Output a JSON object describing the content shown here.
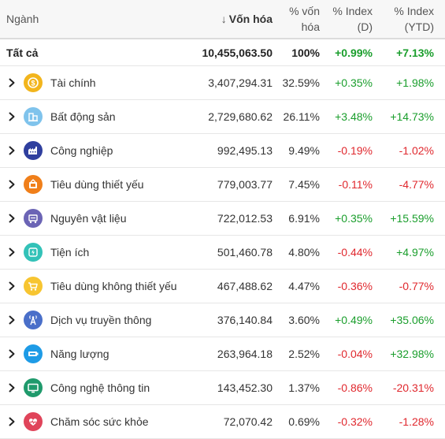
{
  "header": {
    "sector": "Ngành",
    "sort_arrow": "↓",
    "cap": "Vốn hóa",
    "pct_line1": "% vốn",
    "pct_line2": "hóa",
    "index_d_line1": "% Index",
    "index_d_line2": "(D)",
    "index_ytd_line1": "% Index",
    "index_ytd_line2": "(YTD)"
  },
  "total": {
    "name": "Tất cả",
    "cap": "10,455,063.50",
    "pct": "100%",
    "index_d": "+0.99%",
    "index_ytd": "+7.13%"
  },
  "rows": [
    {
      "name": "Tài chính",
      "cap": "3,407,294.31",
      "pct": "32.59%",
      "index_d": "+0.35%",
      "index_ytd": "+1.98%",
      "icon": "coin-icon",
      "color": "#f2b51d",
      "d_sign": "pos",
      "ytd_sign": "pos"
    },
    {
      "name": "Bất động sản",
      "cap": "2,729,680.62",
      "pct": "26.11%",
      "index_d": "+3.48%",
      "index_ytd": "+14.73%",
      "icon": "building-icon",
      "color": "#7fc3ec",
      "d_sign": "pos",
      "ytd_sign": "pos"
    },
    {
      "name": "Công nghiệp",
      "cap": "992,495.13",
      "pct": "9.49%",
      "index_d": "-0.19%",
      "index_ytd": "-1.02%",
      "icon": "factory-icon",
      "color": "#2f3f9e",
      "d_sign": "neg",
      "ytd_sign": "neg"
    },
    {
      "name": "Tiêu dùng thiết yếu",
      "cap": "779,003.77",
      "pct": "7.45%",
      "index_d": "-0.11%",
      "index_ytd": "-4.77%",
      "icon": "basket-icon",
      "color": "#f07f1a",
      "d_sign": "neg",
      "ytd_sign": "neg"
    },
    {
      "name": "Nguyên vật liệu",
      "cap": "722,012.53",
      "pct": "6.91%",
      "index_d": "+0.35%",
      "index_ytd": "+15.59%",
      "icon": "cart-material-icon",
      "color": "#6b64b5",
      "d_sign": "pos",
      "ytd_sign": "pos"
    },
    {
      "name": "Tiện ích",
      "cap": "501,460.78",
      "pct": "4.80%",
      "index_d": "-0.44%",
      "index_ytd": "+4.97%",
      "icon": "utility-icon",
      "color": "#33c2b8",
      "d_sign": "neg",
      "ytd_sign": "pos"
    },
    {
      "name": "Tiêu dùng không thiết yếu",
      "cap": "467,488.62",
      "pct": "4.47%",
      "index_d": "-0.36%",
      "index_ytd": "-0.77%",
      "icon": "shopping-cart-icon",
      "color": "#f7c531",
      "d_sign": "neg",
      "ytd_sign": "neg"
    },
    {
      "name": "Dịch vụ truyền thông",
      "cap": "376,140.84",
      "pct": "3.60%",
      "index_d": "+0.49%",
      "index_ytd": "+35.06%",
      "icon": "antenna-icon",
      "color": "#4a6fc9",
      "d_sign": "pos",
      "ytd_sign": "pos"
    },
    {
      "name": "Năng lượng",
      "cap": "263,964.18",
      "pct": "2.52%",
      "index_d": "-0.04%",
      "index_ytd": "+32.98%",
      "icon": "battery-icon",
      "color": "#1e9be6",
      "d_sign": "neg",
      "ytd_sign": "pos"
    },
    {
      "name": "Công nghệ thông tin",
      "cap": "143,452.30",
      "pct": "1.37%",
      "index_d": "-0.86%",
      "index_ytd": "-20.31%",
      "icon": "monitor-icon",
      "color": "#1f9a6c",
      "d_sign": "neg",
      "ytd_sign": "neg"
    },
    {
      "name": "Chăm sóc sức khỏe",
      "cap": "72,070.42",
      "pct": "0.69%",
      "index_d": "-0.32%",
      "index_ytd": "-1.28%",
      "icon": "heart-pulse-icon",
      "color": "#e0445a",
      "d_sign": "neg",
      "ytd_sign": "neg"
    }
  ]
}
